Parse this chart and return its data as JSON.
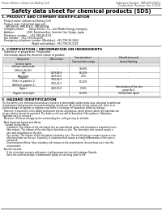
{
  "title": "Safety data sheet for chemical products (SDS)",
  "header_left": "Product Name: Lithium Ion Battery Cell",
  "header_right_line1": "Substance Number: SBR-049-00619",
  "header_right_line2": "Established / Revision: Dec.7,2016",
  "section1_title": "1. PRODUCT AND COMPANY IDENTIFICATION",
  "section1_lines": [
    "· Product name: Lithium Ion Battery Cell",
    "· Product code: Cylindrical-type cell",
    "    INR18650J, INR18650L, INR18650A",
    "· Company name:      Sanyo Electric Co., Ltd. Mobile Energy Company",
    "· Address:               2001 Kamikamiken, Sumoto City, Hyogo, Japan",
    "· Telephone number:   +81-799-26-4111",
    "· Fax number:  +81-799-26-4129",
    "· Emergency telephone number (Weekday): +81-799-26-2662",
    "                                    (Night and holiday): +81-799-26-2121"
  ],
  "section2_title": "2. COMPOSITION / INFORMATION ON INGREDIENTS",
  "section2_intro": "· Substance or preparation: Preparation",
  "section2_table_header": "· Information about the chemical nature of product:",
  "table_col1": "Component",
  "table_col2": "CAS number",
  "table_col3": "Concentration /\nConcentration range",
  "table_col4": "Classification and\nhazard labeling",
  "table_subheader_col1": "General name",
  "table_rows": [
    [
      "Lithium cobalt oxide\n(LiMn-Co-Ni-O2)",
      "-",
      "30-60%",
      ""
    ],
    [
      "Iron\nAluminium",
      "7439-89-6\n7429-90-5",
      "16-25%\n2-6%",
      "-\n-"
    ],
    [
      "Graphite\n(Flake or graphite-1)\n(Artificial graphite-1)",
      "7782-42-5\n7782-42-5",
      "10-25%",
      "-"
    ],
    [
      "Copper",
      "7440-50-8",
      "5-15%",
      "Sensitisation of the skin\ngroup No.2"
    ],
    [
      "Organic electrolyte",
      "-",
      "10-20%",
      "Inflammable liquid"
    ]
  ],
  "section3_title": "3. HAZARD IDENTIFICATION",
  "section3_body": [
    "For the battery cell, chemical materials are stored in a hermetically sealed metal case, designed to withstand",
    "temperatures and pressures encountered during normal use. As a result, during normal use, there is no",
    "physical danger of ignition or explosion and there is no danger of hazardous materials leakage.",
    "  However, if exposed to a fire added mechanical shocks, decompose, which electric which dry materials can",
    "be gas release cannot be operated. The battery cell case will be breached of the patterns. Hazardous",
    "materials may be released.",
    "  Moreover, if heated strongly by the surrounding fire, solid gas may be emitted.",
    "",
    "· Most important hazard and effects:",
    "    Human health effects:",
    "      Inhalation: The release of the electrolyte has an anaesthesia action and stimulates a respiratory tract.",
    "      Skin contact: The release of the electrolyte stimulates a skin. The electrolyte skin contact causes a",
    "      sore and stimulation on the skin.",
    "      Eye contact: The release of the electrolyte stimulates eyes. The electrolyte eye contact causes a sore",
    "      and stimulation on the eye. Especially, a substance that causes a strong inflammation of the eyes is",
    "      contained.",
    "      Environmental effects: Since a battery cell remains in the environment, do not throw out it into the",
    "      environment.",
    "",
    "· Specific hazards:",
    "      If the electrolyte contacts with water, it will generate detrimental hydrogen fluoride.",
    "      Since the used electrolyte is inflammable liquid, do not bring close to fire."
  ],
  "bg_color": "#ffffff",
  "text_color": "#000000",
  "table_line_color": "#aaaaaa",
  "table_header_bg": "#d8d8d8",
  "table_subheader_bg": "#e8e8e8"
}
